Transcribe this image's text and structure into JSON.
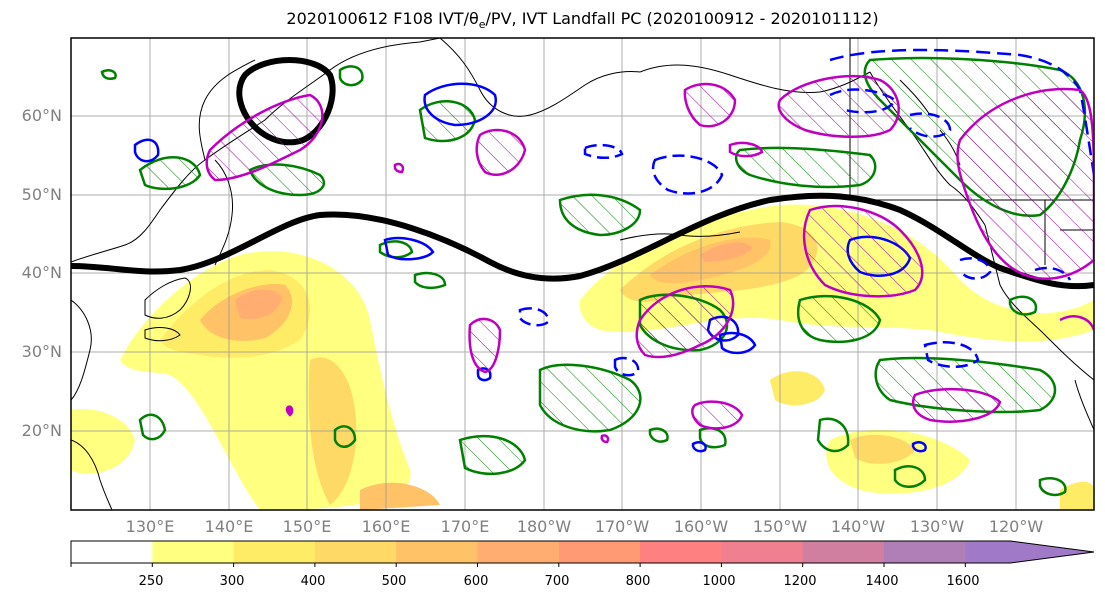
{
  "title": "2020100612 F108 IVT/θe/PV, IVT Landfall PC (2020100912 - 2020101112)",
  "lat_labels": [
    "60°N",
    "50°N",
    "40°N",
    "30°N",
    "20°N"
  ],
  "lon_labels": [
    "130°E",
    "140°E",
    "150°E",
    "160°E",
    "170°E",
    "180°W",
    "170°W",
    "160°W",
    "150°W",
    "140°W",
    "130°W",
    "120°W"
  ],
  "colorbar": {
    "levels": [
      "250",
      "300",
      "400",
      "500",
      "600",
      "700",
      "800",
      "1000",
      "1200",
      "1400",
      "1600"
    ],
    "colors": [
      "#ffffff",
      "#ffff80",
      "#ffec66",
      "#ffd966",
      "#ffc266",
      "#ffad70",
      "#ff9a75",
      "#ff8080",
      "#f08090",
      "#d07fa0",
      "#b07fb8",
      "#a07ac8"
    ]
  },
  "colors": {
    "coast": "#000000",
    "grid": "#999999",
    "green": "#008000",
    "blue": "#0000ff",
    "magenta": "#c000c0",
    "jet": "#000000"
  }
}
